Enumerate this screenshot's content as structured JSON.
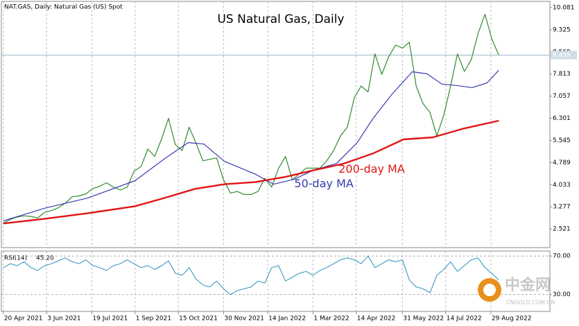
{
  "chart_data": [
    {
      "type": "line",
      "title": "US Natural Gas, Daily",
      "subtitle": "NAT.GAS, Daily:  Natural Gas (US) Spot",
      "xlim": [
        "2021-04-18",
        "2022-10-28"
      ],
      "xticks": [
        {
          "value": "2021-04-20",
          "label": "20 Apr 2021"
        },
        {
          "value": "2021-06-03",
          "label": "3 Jun 2021"
        },
        {
          "value": "2021-07-19",
          "label": "19 Jul 2021"
        },
        {
          "value": "2021-09-01",
          "label": "1 Sep 2021"
        },
        {
          "value": "2021-10-15",
          "label": "15 Oct 2021"
        },
        {
          "value": "2021-11-30",
          "label": "30 Nov 2021"
        },
        {
          "value": "2022-01-14",
          "label": "14 Jan 2022"
        },
        {
          "value": "2022-03-01",
          "label": "1 Mar 2022"
        },
        {
          "value": "2022-04-14",
          "label": "14 Apr 2022"
        },
        {
          "value": "2022-05-31",
          "label": "31 May 2022"
        },
        {
          "value": "2022-07-14",
          "label": "14 Jul 2022"
        },
        {
          "value": "2022-08-29",
          "label": "29 Aug 2022"
        }
      ],
      "ylim": [
        1.885,
        10.293
      ],
      "yticks": [
        10.081,
        9.325,
        8.569,
        7.813,
        7.057,
        6.301,
        5.545,
        4.789,
        4.033,
        3.277,
        2.521
      ],
      "grid": "vertical",
      "current_price": 8.459,
      "series": [
        {
          "name": "NAT.GAS",
          "color": "#2f8a2f",
          "x": [
            "2021-04-20",
            "2021-04-27",
            "2021-05-04",
            "2021-05-11",
            "2021-05-18",
            "2021-05-25",
            "2021-06-01",
            "2021-06-08",
            "2021-06-15",
            "2021-06-22",
            "2021-06-29",
            "2021-07-06",
            "2021-07-13",
            "2021-07-20",
            "2021-07-27",
            "2021-08-03",
            "2021-08-10",
            "2021-08-17",
            "2021-08-24",
            "2021-08-31",
            "2021-09-07",
            "2021-09-14",
            "2021-09-21",
            "2021-09-28",
            "2021-10-05",
            "2021-10-12",
            "2021-10-19",
            "2021-10-26",
            "2021-11-02",
            "2021-11-09",
            "2021-11-16",
            "2021-11-23",
            "2021-11-30",
            "2021-12-07",
            "2021-12-14",
            "2021-12-21",
            "2021-12-28",
            "2022-01-04",
            "2022-01-11",
            "2022-01-18",
            "2022-01-25",
            "2022-02-01",
            "2022-02-08",
            "2022-02-15",
            "2022-02-22",
            "2022-03-01",
            "2022-03-08",
            "2022-03-15",
            "2022-03-22",
            "2022-03-29",
            "2022-04-05",
            "2022-04-12",
            "2022-04-19",
            "2022-04-26",
            "2022-05-03",
            "2022-05-10",
            "2022-05-17",
            "2022-05-24",
            "2022-05-31",
            "2022-06-07",
            "2022-06-14",
            "2022-06-21",
            "2022-06-28",
            "2022-07-05",
            "2022-07-12",
            "2022-07-19",
            "2022-07-26",
            "2022-08-02",
            "2022-08-09",
            "2022-08-16",
            "2022-08-23",
            "2022-08-30",
            "2022-09-06"
          ],
          "values": [
            2.72,
            2.85,
            2.93,
            2.97,
            2.95,
            2.9,
            3.09,
            3.15,
            3.25,
            3.4,
            3.62,
            3.65,
            3.72,
            3.9,
            3.98,
            4.1,
            3.95,
            3.85,
            3.95,
            4.5,
            4.65,
            5.25,
            5.0,
            5.6,
            6.3,
            5.4,
            5.2,
            6.0,
            5.45,
            4.85,
            4.9,
            4.95,
            4.2,
            3.75,
            3.8,
            3.7,
            3.7,
            3.8,
            4.25,
            3.95,
            4.6,
            5.0,
            4.2,
            4.4,
            4.6,
            4.6,
            4.6,
            4.85,
            5.2,
            5.7,
            6.0,
            7.0,
            7.4,
            7.2,
            8.5,
            7.8,
            8.4,
            8.8,
            8.7,
            8.9,
            7.4,
            6.8,
            6.5,
            5.7,
            6.4,
            7.4,
            8.5,
            7.9,
            8.3,
            9.2,
            9.85,
            9.0,
            8.459
          ]
        },
        {
          "name": "50-day MA",
          "color": "#3a3ab4",
          "x": [
            "2021-04-20",
            "2021-06-01",
            "2021-07-15",
            "2021-09-01",
            "2021-10-01",
            "2021-10-25",
            "2021-11-10",
            "2021-12-01",
            "2022-01-01",
            "2022-01-20",
            "2022-02-10",
            "2022-03-01",
            "2022-03-25",
            "2022-04-15",
            "2022-05-01",
            "2022-05-20",
            "2022-06-10",
            "2022-06-25",
            "2022-07-10",
            "2022-07-25",
            "2022-08-10",
            "2022-08-25",
            "2022-09-06"
          ],
          "values": [
            2.8,
            3.23,
            3.58,
            4.17,
            4.92,
            5.47,
            5.42,
            4.83,
            4.4,
            4.05,
            4.22,
            4.52,
            4.76,
            5.47,
            6.29,
            7.11,
            7.89,
            7.82,
            7.47,
            7.42,
            7.35,
            7.51,
            7.94
          ]
        },
        {
          "name": "200-day MA",
          "color": "#e01414",
          "x": [
            "2021-04-20",
            "2021-06-01",
            "2021-07-15",
            "2021-09-01",
            "2021-10-01",
            "2021-11-01",
            "2021-12-01",
            "2022-01-01",
            "2022-02-01",
            "2022-03-01",
            "2022-04-01",
            "2022-05-01",
            "2022-06-01",
            "2022-07-01",
            "2022-08-01",
            "2022-09-06"
          ],
          "values": [
            2.71,
            2.87,
            3.06,
            3.3,
            3.58,
            3.89,
            4.05,
            4.12,
            4.3,
            4.52,
            4.75,
            5.1,
            5.58,
            5.65,
            5.95,
            6.22
          ]
        }
      ],
      "annotations": [
        {
          "text": "200-day MA",
          "x": "2022-03-27",
          "y": 4.55,
          "color": "#e01414"
        },
        {
          "text": "50-day MA",
          "x": "2022-02-10",
          "y": 4.05,
          "color": "#3a3ab4"
        }
      ]
    },
    {
      "type": "line",
      "title": "RSI(14)",
      "current": {
        "value": 45.2,
        "label": "45.20"
      },
      "xlim": [
        "2021-04-18",
        "2022-10-28"
      ],
      "ylim": [
        12.5,
        75.1
      ],
      "yticks": [
        {
          "value": 70,
          "label": "70.00"
        },
        {
          "value": 30,
          "label": "30.00"
        }
      ],
      "series": [
        {
          "name": "RSI(14)",
          "color": "#2a8fbd",
          "x": [
            "2021-04-20",
            "2021-04-27",
            "2021-05-04",
            "2021-05-11",
            "2021-05-18",
            "2021-05-25",
            "2021-06-01",
            "2021-06-08",
            "2021-06-15",
            "2021-06-22",
            "2021-06-29",
            "2021-07-06",
            "2021-07-13",
            "2021-07-20",
            "2021-07-27",
            "2021-08-03",
            "2021-08-10",
            "2021-08-17",
            "2021-08-24",
            "2021-08-31",
            "2021-09-07",
            "2021-09-14",
            "2021-09-21",
            "2021-09-28",
            "2021-10-05",
            "2021-10-12",
            "2021-10-19",
            "2021-10-26",
            "2021-11-02",
            "2021-11-09",
            "2021-11-16",
            "2021-11-23",
            "2021-11-30",
            "2021-12-07",
            "2021-12-14",
            "2021-12-21",
            "2021-12-28",
            "2022-01-04",
            "2022-01-11",
            "2022-01-18",
            "2022-01-25",
            "2022-02-01",
            "2022-02-08",
            "2022-02-15",
            "2022-02-22",
            "2022-03-01",
            "2022-03-08",
            "2022-03-15",
            "2022-03-22",
            "2022-03-29",
            "2022-04-05",
            "2022-04-12",
            "2022-04-19",
            "2022-04-26",
            "2022-05-03",
            "2022-05-10",
            "2022-05-17",
            "2022-05-24",
            "2022-05-31",
            "2022-06-07",
            "2022-06-14",
            "2022-06-21",
            "2022-06-28",
            "2022-07-05",
            "2022-07-12",
            "2022-07-19",
            "2022-07-26",
            "2022-08-02",
            "2022-08-09",
            "2022-08-16",
            "2022-08-23",
            "2022-08-30",
            "2022-09-06"
          ],
          "values": [
            58,
            62,
            60,
            64,
            58,
            55,
            60,
            62,
            65,
            68,
            64,
            62,
            66,
            60,
            58,
            55,
            60,
            62,
            66,
            62,
            58,
            60,
            56,
            60,
            65,
            52,
            50,
            58,
            46,
            40,
            38,
            44,
            36,
            30,
            34,
            36,
            38,
            44,
            42,
            58,
            60,
            44,
            48,
            52,
            54,
            50,
            55,
            58,
            62,
            66,
            68,
            66,
            62,
            70,
            58,
            62,
            66,
            64,
            66,
            45,
            38,
            36,
            32,
            50,
            56,
            64,
            54,
            60,
            66,
            68,
            58,
            52,
            45.2
          ]
        }
      ]
    }
  ],
  "watermark": {
    "name": "中金网",
    "site": "CNGOLD.COM.CN"
  }
}
